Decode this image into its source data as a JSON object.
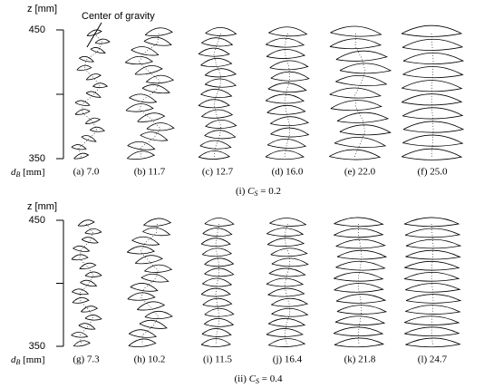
{
  "panels": [
    {
      "z_label": "z [mm]",
      "z_top": "450",
      "z_bottom": "350",
      "annotation": "Center of gravity",
      "d_label": {
        "symbol": "d",
        "subscript": "B",
        "unit": " [mm]"
      },
      "subfigures": [
        "(a) 7.0",
        "(b) 11.7",
        "(c) 12.7",
        "(d) 16.0",
        "(e) 22.0",
        "(f) 25.0"
      ],
      "caption": {
        "prefix": "(i) ",
        "symbol": "C",
        "subscript": "S",
        "rest": " = 0.2"
      }
    },
    {
      "z_label": "z [mm]",
      "z_top": "450",
      "z_bottom": "350",
      "d_label": {
        "symbol": "d",
        "subscript": "B",
        "unit": " [mm]"
      },
      "subfigures": [
        "(g) 7.3",
        "(h) 10.2",
        "(i) 11.5",
        "(j) 16.4",
        "(k) 21.8",
        "(l) 24.7"
      ],
      "caption": {
        "prefix": "(ii) ",
        "symbol": "C",
        "subscript": "S",
        "rest": " = 0.4"
      }
    }
  ]
}
